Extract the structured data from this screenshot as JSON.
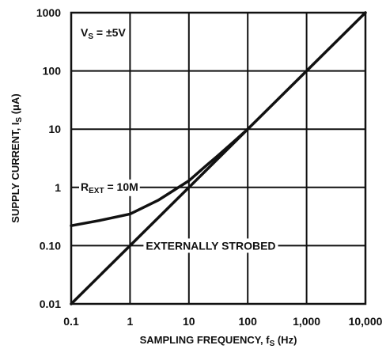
{
  "chart_data": {
    "type": "line",
    "x_scale": "log",
    "y_scale": "log",
    "xlim": [
      0.1,
      10000
    ],
    "ylim": [
      0.01,
      1000
    ],
    "x_ticks": [
      "0.1",
      "1",
      "10",
      "100",
      "1,000",
      "10,000"
    ],
    "y_ticks": [
      "1000",
      "100",
      "10",
      "1",
      "0.10",
      "0.01"
    ],
    "x_tick_values": [
      0.1,
      1,
      10,
      100,
      1000,
      10000
    ],
    "y_tick_values": [
      1000,
      100,
      10,
      1,
      0.1,
      0.01
    ],
    "xlabel": {
      "main": "SAMPLING FREQUENCY, f",
      "sub": "S",
      "unit": " (Hz)"
    },
    "ylabel": {
      "main": "SUPPLY CURRENT, I",
      "sub": "S",
      "unit": " (μA)"
    },
    "grid": true,
    "condition": {
      "main": "V",
      "sub": "S",
      "rest": " = ±5V"
    },
    "series": [
      {
        "name": "EXTERNALLY STROBED",
        "x": [
          0.1,
          10000
        ],
        "y": [
          0.01,
          1000
        ]
      },
      {
        "name_parts": {
          "main": "R",
          "sub": "EXT",
          "rest": " = 10M"
        },
        "x": [
          0.1,
          0.3,
          1,
          3,
          10,
          20,
          30,
          60,
          100
        ],
        "y": [
          0.22,
          0.27,
          0.35,
          0.6,
          1.3,
          2.4,
          3.4,
          6.3,
          10
        ]
      }
    ]
  }
}
